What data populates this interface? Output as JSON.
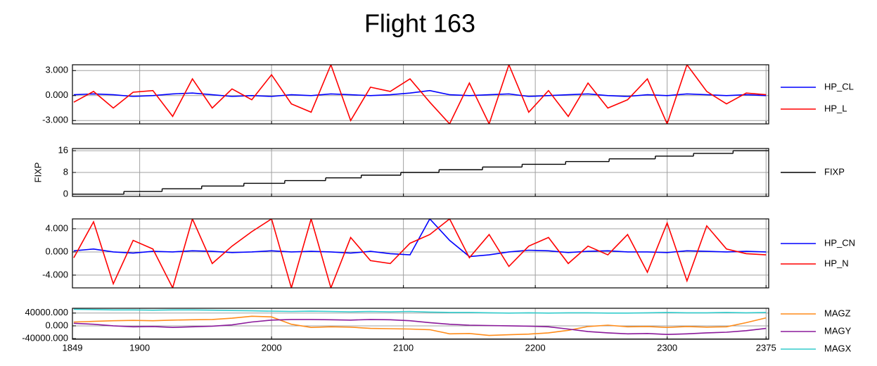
{
  "title": "Flight 163",
  "chart_data": [
    {
      "type": "line",
      "legend": "right",
      "grid": true,
      "show_xticklabels": false,
      "x": [
        1850,
        1865,
        1880,
        1895,
        1910,
        1925,
        1940,
        1955,
        1970,
        1985,
        2000,
        2015,
        2030,
        2045,
        2060,
        2075,
        2090,
        2105,
        2120,
        2135,
        2150,
        2165,
        2180,
        2195,
        2210,
        2225,
        2240,
        2255,
        2270,
        2285,
        2300,
        2315,
        2330,
        2345,
        2360,
        2375
      ],
      "xlim": [
        1849,
        2377
      ],
      "xticks": [
        1849,
        1900,
        2000,
        2100,
        2200,
        2300,
        2375
      ],
      "ylim": [
        -3.4,
        3.7
      ],
      "yticks": [
        {
          "value": -3,
          "label": "-3.000"
        },
        {
          "value": 0,
          "label": "0.000"
        },
        {
          "value": 3,
          "label": "3.000"
        }
      ],
      "series": [
        {
          "name": "HP_CL",
          "color": "#0000ff",
          "values": [
            0.1,
            0.2,
            0.1,
            -0.1,
            0.0,
            0.2,
            0.3,
            0.1,
            -0.1,
            0.0,
            -0.1,
            0.1,
            0.0,
            0.2,
            0.1,
            0.0,
            0.1,
            0.3,
            0.6,
            0.1,
            0.0,
            0.1,
            0.2,
            -0.1,
            0.0,
            0.1,
            0.2,
            0.0,
            -0.1,
            0.1,
            0.0,
            0.2,
            0.1,
            0.0,
            0.1,
            0.0
          ]
        },
        {
          "name": "HP_L",
          "color": "#ff0000",
          "values": [
            -0.8,
            0.5,
            -1.5,
            0.4,
            0.6,
            -2.5,
            2.0,
            -1.5,
            0.8,
            -0.5,
            2.5,
            -1.0,
            -2.0,
            3.7,
            -3.0,
            1.0,
            0.5,
            2.0,
            -0.8,
            -3.4,
            1.5,
            -3.4,
            3.7,
            -2.0,
            0.6,
            -2.5,
            1.5,
            -1.5,
            -0.5,
            2.0,
            -3.4,
            3.7,
            0.5,
            -1.0,
            0.3,
            0.1
          ]
        }
      ]
    },
    {
      "type": "step",
      "legend": "right",
      "grid": true,
      "show_xticklabels": false,
      "ylabel": "FIXP",
      "x": [
        1849,
        1888,
        1917,
        1947,
        1979,
        2010,
        2041,
        2068,
        2098,
        2127,
        2160,
        2190,
        2223,
        2256,
        2291,
        2320,
        2350,
        2377
      ],
      "xlim": [
        1849,
        2377
      ],
      "xticks": [
        1849,
        1900,
        2000,
        2100,
        2200,
        2300,
        2375
      ],
      "ylim": [
        -0.8,
        16.8
      ],
      "yticks": [
        0,
        8,
        16
      ],
      "series": [
        {
          "name": "FIXP",
          "color": "#000000",
          "values": [
            0,
            1,
            2,
            3,
            4,
            5,
            6,
            7,
            8,
            9,
            10,
            11,
            12,
            13,
            14,
            15,
            16,
            16
          ]
        }
      ]
    },
    {
      "type": "line",
      "legend": "right",
      "grid": true,
      "show_xticklabels": false,
      "x": [
        1850,
        1865,
        1880,
        1895,
        1910,
        1925,
        1940,
        1955,
        1970,
        1985,
        2000,
        2015,
        2030,
        2045,
        2060,
        2075,
        2090,
        2105,
        2120,
        2135,
        2150,
        2165,
        2180,
        2195,
        2210,
        2225,
        2240,
        2255,
        2270,
        2285,
        2300,
        2315,
        2330,
        2345,
        2360,
        2375
      ],
      "xlim": [
        1849,
        2377
      ],
      "xticks": [
        1849,
        1900,
        2000,
        2100,
        2200,
        2300,
        2375
      ],
      "ylim": [
        -6.2,
        5.7
      ],
      "yticks": [
        {
          "value": -4,
          "label": "-4.000"
        },
        {
          "value": 0,
          "label": "0.000"
        },
        {
          "value": 4,
          "label": "4.000"
        }
      ],
      "series": [
        {
          "name": "HP_CN",
          "color": "#0000ff",
          "values": [
            0.2,
            0.5,
            0.0,
            -0.2,
            0.1,
            0.0,
            0.2,
            0.1,
            -0.1,
            0.0,
            0.2,
            0.0,
            0.1,
            0.0,
            -0.2,
            0.1,
            -0.3,
            -0.5,
            5.7,
            2.0,
            -0.8,
            -0.5,
            0.0,
            0.3,
            0.2,
            -0.1,
            0.1,
            0.2,
            0.0,
            0.0,
            -0.1,
            0.2,
            0.1,
            0.0,
            0.1,
            0.0
          ]
        },
        {
          "name": "HP_N",
          "color": "#ff0000",
          "values": [
            -1.0,
            5.2,
            -5.5,
            2.0,
            0.5,
            -6.2,
            5.7,
            -2.0,
            1.0,
            3.5,
            5.7,
            -6.2,
            5.7,
            -6.2,
            2.5,
            -1.5,
            -2.0,
            1.5,
            3.0,
            5.7,
            -1.0,
            3.0,
            -2.5,
            1.0,
            2.5,
            -2.0,
            1.0,
            -0.5,
            3.0,
            -3.5,
            5.0,
            -5.0,
            4.5,
            0.5,
            -0.3,
            -0.5
          ]
        }
      ]
    },
    {
      "type": "line",
      "legend": "right",
      "grid": true,
      "show_xticklabels": true,
      "x": [
        1850,
        1865,
        1880,
        1895,
        1910,
        1925,
        1940,
        1955,
        1970,
        1985,
        2000,
        2015,
        2030,
        2045,
        2060,
        2075,
        2090,
        2105,
        2120,
        2135,
        2150,
        2165,
        2180,
        2195,
        2210,
        2225,
        2240,
        2255,
        2270,
        2285,
        2300,
        2315,
        2330,
        2345,
        2360,
        2375
      ],
      "xlim": [
        1849,
        2377
      ],
      "xticks": [
        1849,
        1900,
        2000,
        2100,
        2200,
        2300,
        2375
      ],
      "ylim": [
        -42000,
        55000
      ],
      "yticks": [
        {
          "value": -40000,
          "label": "-40000.000"
        },
        {
          "value": 0,
          "label": "0.000"
        },
        {
          "value": 40000,
          "label": "40000.000"
        }
      ],
      "series": [
        {
          "name": "MAGZ",
          "color": "#ff8c1a",
          "values": [
            12000,
            14000,
            16000,
            17000,
            16000,
            18000,
            19000,
            20000,
            24000,
            30000,
            28000,
            5000,
            -5000,
            -3000,
            -4000,
            -8000,
            -9000,
            -10000,
            -12000,
            -25000,
            -24000,
            -30000,
            -28000,
            -26000,
            -22000,
            -14000,
            -2000,
            2000,
            -3000,
            -2000,
            -5000,
            -2000,
            -4000,
            -3000,
            10000,
            25000
          ]
        },
        {
          "name": "MAGY",
          "color": "#8b1a9b",
          "values": [
            8000,
            5000,
            0,
            -3000,
            -2000,
            -5000,
            -3000,
            -1000,
            3000,
            12000,
            18000,
            20000,
            20000,
            19000,
            18000,
            20000,
            19000,
            16000,
            10000,
            5000,
            2000,
            1000,
            0,
            -1000,
            -3000,
            -10000,
            -18000,
            -22000,
            -25000,
            -24000,
            -27000,
            -25000,
            -22000,
            -20000,
            -15000,
            -8000
          ]
        },
        {
          "name": "MAGX",
          "color": "#33cccc",
          "values": [
            52000,
            51000,
            50000,
            50000,
            49000,
            50000,
            50000,
            49000,
            48000,
            47000,
            46000,
            45000,
            46000,
            45000,
            44000,
            45000,
            44000,
            45000,
            43000,
            42000,
            42000,
            41000,
            40000,
            41000,
            40000,
            41000,
            41000,
            40000,
            40000,
            41000,
            42000,
            41000,
            41000,
            42000,
            41000,
            42000
          ]
        }
      ]
    }
  ]
}
